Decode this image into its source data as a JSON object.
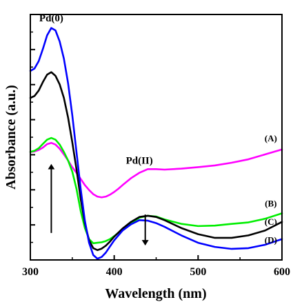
{
  "chart_data": {
    "type": "line",
    "xlabel": "Wavelength (nm)",
    "ylabel": "Absorbance (a.u.)",
    "xlim": [
      300,
      600
    ],
    "ylim": [
      0,
      1
    ],
    "xticks": [
      "300",
      "400",
      "500",
      "600"
    ],
    "y_tick_labels": "none",
    "grid": false,
    "series": [
      {
        "name": "(A)",
        "color": "#ff00ff",
        "x": [
          300,
          305,
          310,
          315,
          320,
          325,
          330,
          335,
          340,
          345,
          350,
          355,
          360,
          365,
          370,
          375,
          380,
          385,
          390,
          395,
          400,
          405,
          410,
          420,
          430,
          440,
          450,
          460,
          480,
          500,
          520,
          540,
          560,
          580,
          600
        ],
        "y": [
          0.44,
          0.442,
          0.448,
          0.458,
          0.472,
          0.477,
          0.47,
          0.453,
          0.43,
          0.405,
          0.378,
          0.355,
          0.33,
          0.305,
          0.285,
          0.268,
          0.258,
          0.255,
          0.258,
          0.266,
          0.277,
          0.29,
          0.305,
          0.333,
          0.355,
          0.37,
          0.37,
          0.368,
          0.372,
          0.378,
          0.385,
          0.396,
          0.41,
          0.43,
          0.45
        ]
      },
      {
        "name": "(B)",
        "color": "#00ee00",
        "x": [
          300,
          305,
          310,
          315,
          320,
          325,
          330,
          335,
          340,
          345,
          350,
          355,
          360,
          365,
          370,
          375,
          380,
          385,
          390,
          395,
          400,
          410,
          420,
          430,
          440,
          450,
          460,
          480,
          500,
          520,
          540,
          560,
          580,
          600
        ],
        "y": [
          0.44,
          0.445,
          0.455,
          0.473,
          0.49,
          0.497,
          0.49,
          0.47,
          0.44,
          0.405,
          0.36,
          0.29,
          0.2,
          0.13,
          0.085,
          0.068,
          0.07,
          0.072,
          0.077,
          0.085,
          0.097,
          0.125,
          0.15,
          0.172,
          0.18,
          0.177,
          0.165,
          0.147,
          0.138,
          0.14,
          0.147,
          0.153,
          0.168,
          0.19
        ]
      },
      {
        "name": "(C)",
        "color": "#000000",
        "x": [
          300,
          305,
          310,
          315,
          320,
          325,
          330,
          335,
          340,
          345,
          350,
          355,
          360,
          365,
          370,
          375,
          380,
          385,
          390,
          395,
          400,
          410,
          420,
          430,
          440,
          450,
          460,
          480,
          500,
          520,
          540,
          560,
          580,
          600
        ],
        "y": [
          0.66,
          0.668,
          0.69,
          0.725,
          0.755,
          0.765,
          0.75,
          0.715,
          0.66,
          0.58,
          0.48,
          0.37,
          0.25,
          0.15,
          0.08,
          0.048,
          0.04,
          0.046,
          0.058,
          0.075,
          0.095,
          0.128,
          0.155,
          0.175,
          0.18,
          0.175,
          0.162,
          0.13,
          0.105,
          0.09,
          0.09,
          0.1,
          0.12,
          0.155
        ]
      },
      {
        "name": "(D)",
        "color": "#0000ff",
        "x": [
          300,
          305,
          310,
          315,
          320,
          325,
          330,
          335,
          340,
          345,
          350,
          355,
          360,
          365,
          370,
          375,
          380,
          385,
          390,
          395,
          400,
          410,
          420,
          430,
          440,
          450,
          460,
          480,
          500,
          520,
          540,
          560,
          580,
          600
        ],
        "y": [
          0.77,
          0.78,
          0.81,
          0.86,
          0.915,
          0.945,
          0.935,
          0.89,
          0.82,
          0.72,
          0.59,
          0.44,
          0.29,
          0.16,
          0.07,
          0.02,
          0.005,
          0.012,
          0.03,
          0.055,
          0.08,
          0.12,
          0.145,
          0.162,
          0.16,
          0.15,
          0.135,
          0.1,
          0.07,
          0.053,
          0.045,
          0.048,
          0.062,
          0.085
        ]
      }
    ],
    "annotations": [
      {
        "text": "Pd(0)",
        "x": 325,
        "y": 1.0
      },
      {
        "text": "Pd(II)",
        "x": 430,
        "y": 0.42
      },
      {
        "type": "arrow",
        "direction": "up",
        "x": 325,
        "y_from": 0.11,
        "y_to": 0.38
      },
      {
        "type": "arrow",
        "direction": "down",
        "x": 437,
        "y_from": 0.185,
        "y_to": 0.07
      }
    ]
  }
}
